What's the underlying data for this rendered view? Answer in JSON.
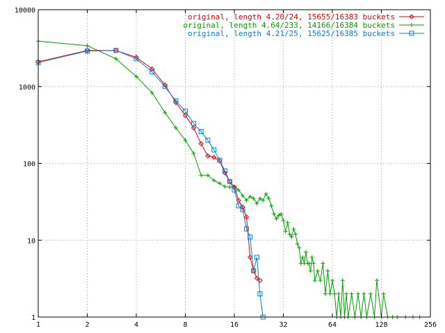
{
  "chart_data": {
    "type": "line",
    "title": "",
    "xlabel": "",
    "ylabel": "",
    "xscale": "log2",
    "yscale": "log10",
    "xlim": [
      1,
      256
    ],
    "ylim": [
      1,
      10000
    ],
    "grid": true,
    "legend_position": "top-right",
    "x_ticks": [
      {
        "value": 1,
        "label": "1"
      },
      {
        "value": 2,
        "label": "2"
      },
      {
        "value": 4,
        "label": "4"
      },
      {
        "value": 8,
        "label": "8"
      },
      {
        "value": 16,
        "label": "16"
      },
      {
        "value": 32,
        "label": "32"
      },
      {
        "value": 64,
        "label": "64"
      },
      {
        "value": 128,
        "label": "128"
      },
      {
        "value": 256,
        "label": "256"
      }
    ],
    "y_ticks": [
      {
        "value": 1,
        "label": "1"
      },
      {
        "value": 10,
        "label": "10"
      },
      {
        "value": 100,
        "label": "100"
      },
      {
        "value": 1000,
        "label": "1000"
      },
      {
        "value": 10000,
        "label": "10000"
      }
    ],
    "series": [
      {
        "name": "original, length 4.20/24, 15655/16383 buckets",
        "color": "#e00000",
        "marker": "diamond",
        "points": [
          [
            1,
            2100
          ],
          [
            2,
            2950
          ],
          [
            3,
            2950
          ],
          [
            4,
            2400
          ],
          [
            5,
            1700
          ],
          [
            6,
            1050
          ],
          [
            7,
            620
          ],
          [
            8,
            420
          ],
          [
            9,
            290
          ],
          [
            10,
            180
          ],
          [
            11,
            125
          ],
          [
            12,
            120
          ],
          [
            13,
            108
          ],
          [
            14,
            75
          ],
          [
            15,
            58
          ],
          [
            16,
            49
          ],
          [
            17,
            33
          ],
          [
            18,
            27
          ],
          [
            19,
            20
          ],
          [
            20,
            6
          ],
          [
            21,
            4
          ],
          [
            22,
            3.2
          ],
          [
            23,
            3.0
          ]
        ]
      },
      {
        "name": "original, length 4.64/233, 14166/16384 buckets",
        "color": "#00a000",
        "marker": "plus",
        "points": [
          [
            1,
            3900
          ],
          [
            2,
            3400
          ],
          [
            3,
            2300
          ],
          [
            4,
            1350
          ],
          [
            5,
            830
          ],
          [
            6,
            460
          ],
          [
            7,
            290
          ],
          [
            8,
            200
          ],
          [
            9,
            135
          ],
          [
            10,
            70
          ],
          [
            11,
            70
          ],
          [
            12,
            60
          ],
          [
            13,
            55
          ],
          [
            14,
            50
          ],
          [
            15,
            49
          ],
          [
            16,
            50
          ],
          [
            17,
            45
          ],
          [
            18,
            38
          ],
          [
            19,
            33
          ],
          [
            20,
            37
          ],
          [
            21,
            35
          ],
          [
            22,
            30
          ],
          [
            23,
            35
          ],
          [
            24,
            33
          ],
          [
            25,
            40
          ],
          [
            26,
            35
          ],
          [
            27,
            28
          ],
          [
            28,
            22
          ],
          [
            29,
            19
          ],
          [
            30,
            21
          ],
          [
            31,
            22
          ],
          [
            32,
            18
          ],
          [
            33,
            13
          ],
          [
            34,
            17
          ],
          [
            35,
            12
          ],
          [
            36,
            11
          ],
          [
            37,
            14
          ],
          [
            38,
            12
          ],
          [
            39,
            9
          ],
          [
            40,
            8
          ],
          [
            41,
            5
          ],
          [
            42,
            6
          ],
          [
            43,
            5
          ],
          [
            44,
            7
          ],
          [
            45,
            5
          ],
          [
            46,
            5
          ],
          [
            47,
            4
          ],
          [
            48,
            6
          ],
          [
            49,
            5
          ],
          [
            50,
            3
          ],
          [
            52,
            4
          ],
          [
            54,
            3
          ],
          [
            56,
            5
          ],
          [
            58,
            2
          ],
          [
            60,
            4
          ],
          [
            62,
            2
          ],
          [
            64,
            3
          ],
          [
            66,
            2
          ],
          [
            68,
            1
          ],
          [
            70,
            2
          ],
          [
            72,
            1
          ],
          [
            74,
            3
          ],
          [
            76,
            1
          ],
          [
            78,
            2
          ],
          [
            80,
            1
          ],
          [
            84,
            2
          ],
          [
            88,
            1
          ],
          [
            92,
            2
          ],
          [
            96,
            1
          ],
          [
            100,
            2
          ],
          [
            104,
            1
          ],
          [
            110,
            2
          ],
          [
            116,
            1
          ],
          [
            120,
            3
          ],
          [
            128,
            1
          ],
          [
            132,
            2
          ],
          [
            140,
            1
          ],
          [
            150,
            1
          ],
          [
            160,
            1
          ],
          [
            180,
            1
          ],
          [
            200,
            1
          ],
          [
            220,
            1
          ]
        ]
      },
      {
        "name": "original, length 4.21/25, 15625/16385 buckets",
        "color": "#0080d0",
        "marker": "square",
        "points": [
          [
            1,
            2050
          ],
          [
            2,
            2900
          ],
          [
            3,
            2950
          ],
          [
            4,
            2300
          ],
          [
            5,
            1550
          ],
          [
            6,
            1000
          ],
          [
            7,
            650
          ],
          [
            8,
            480
          ],
          [
            9,
            330
          ],
          [
            10,
            260
          ],
          [
            11,
            200
          ],
          [
            12,
            150
          ],
          [
            13,
            110
          ],
          [
            14,
            80
          ],
          [
            15,
            58
          ],
          [
            16,
            45
          ],
          [
            17,
            28
          ],
          [
            18,
            25
          ],
          [
            19,
            14
          ],
          [
            20,
            11
          ],
          [
            21,
            4
          ],
          [
            22,
            6
          ],
          [
            23,
            2
          ],
          [
            24,
            1
          ]
        ]
      }
    ]
  }
}
